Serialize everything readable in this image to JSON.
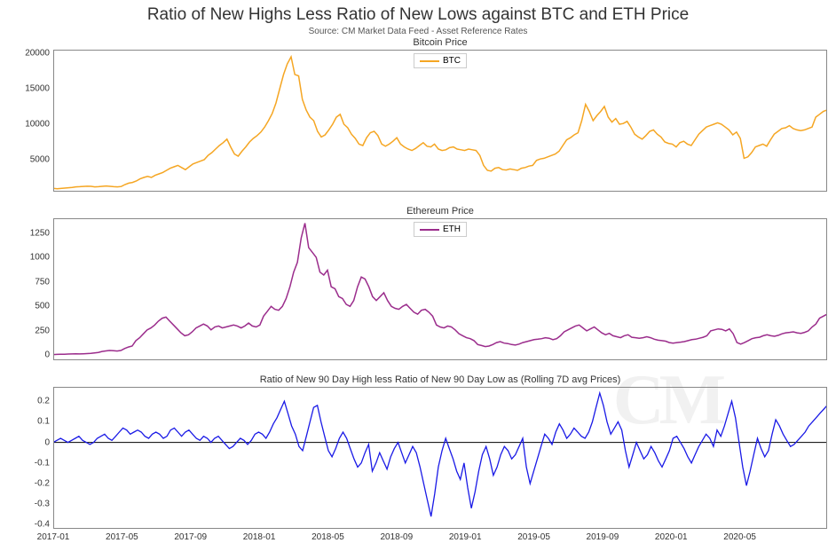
{
  "title": "Ratio of New Highs Less Ratio of New Lows against BTC and ETH Price",
  "subtitle": "Source: CM Market Data Feed - Asset Reference Rates",
  "background_color": "#ffffff",
  "watermark_text": "CM",
  "x_axis": {
    "ticks": [
      "2017-01",
      "2017-05",
      "2017-09",
      "2018-01",
      "2018-05",
      "2018-09",
      "2019-01",
      "2019-05",
      "2019-09",
      "2020-01",
      "2020-05"
    ],
    "fontsize": 10
  },
  "panels": [
    {
      "key": "btc",
      "title": "Bitcoin Price",
      "legend_label": "BTC",
      "color": "#f5a623",
      "line_width": 1.5,
      "y_ticks": [
        5000,
        10000,
        15000,
        20000
      ],
      "ylim": [
        500,
        20500
      ],
      "data": [
        980,
        900,
        950,
        1000,
        1050,
        1100,
        1180,
        1200,
        1240,
        1260,
        1250,
        1180,
        1200,
        1250,
        1300,
        1250,
        1200,
        1180,
        1220,
        1500,
        1700,
        1800,
        2000,
        2300,
        2500,
        2650,
        2500,
        2800,
        3000,
        3200,
        3500,
        3800,
        4000,
        4200,
        3900,
        3600,
        4000,
        4400,
        4600,
        4800,
        5000,
        5600,
        6000,
        6500,
        7000,
        7400,
        7900,
        6800,
        5800,
        5500,
        6200,
        6800,
        7500,
        8000,
        8400,
        8900,
        9600,
        10500,
        11500,
        13000,
        15000,
        17000,
        18500,
        19500,
        17000,
        16800,
        13500,
        12000,
        11000,
        10500,
        9000,
        8200,
        8500,
        9200,
        10000,
        11000,
        11400,
        10000,
        9500,
        8600,
        8000,
        7200,
        7000,
        8100,
        8800,
        9000,
        8400,
        7200,
        6900,
        7200,
        7600,
        8100,
        7200,
        6800,
        6500,
        6300,
        6600,
        7000,
        7400,
        6900,
        6800,
        7200,
        6500,
        6300,
        6400,
        6700,
        6800,
        6500,
        6400,
        6300,
        6500,
        6400,
        6300,
        5600,
        4200,
        3500,
        3400,
        3800,
        3900,
        3600,
        3550,
        3700,
        3600,
        3500,
        3800,
        3900,
        4100,
        4200,
        4900,
        5100,
        5200,
        5400,
        5600,
        5800,
        6200,
        7000,
        7800,
        8100,
        8500,
        8800,
        10500,
        12800,
        11800,
        10500,
        11200,
        11800,
        12500,
        11000,
        10300,
        10800,
        10000,
        10100,
        10400,
        9600,
        8600,
        8200,
        7900,
        8400,
        9000,
        9200,
        8600,
        8200,
        7500,
        7300,
        7200,
        6800,
        7400,
        7600,
        7200,
        7000,
        7800,
        8600,
        9100,
        9600,
        9800,
        10000,
        10200,
        10000,
        9600,
        9200,
        8500,
        8900,
        8000,
        5200,
        5400,
        6000,
        6800,
        7000,
        7200,
        6900,
        7800,
        8600,
        9000,
        9400,
        9500,
        9800,
        9400,
        9200,
        9100,
        9200,
        9400,
        9600,
        11000,
        11400,
        11800,
        12000
      ]
    },
    {
      "key": "eth",
      "title": "Ethereum Price",
      "legend_label": "ETH",
      "color": "#9b2d8c",
      "line_width": 1.5,
      "y_ticks": [
        0,
        250,
        500,
        750,
        1000,
        1250
      ],
      "ylim": [
        -50,
        1400
      ],
      "data": [
        8,
        10,
        11,
        12,
        13,
        14,
        15,
        14,
        16,
        18,
        20,
        25,
        30,
        40,
        45,
        50,
        48,
        44,
        50,
        70,
        85,
        95,
        150,
        180,
        220,
        260,
        280,
        310,
        350,
        380,
        390,
        350,
        310,
        270,
        230,
        200,
        210,
        240,
        280,
        300,
        320,
        300,
        260,
        290,
        300,
        280,
        290,
        300,
        310,
        300,
        280,
        300,
        330,
        300,
        290,
        310,
        400,
        450,
        500,
        470,
        460,
        500,
        580,
        700,
        850,
        950,
        1200,
        1350,
        1100,
        1050,
        1000,
        850,
        820,
        870,
        700,
        680,
        600,
        580,
        520,
        500,
        560,
        700,
        800,
        780,
        700,
        600,
        560,
        600,
        640,
        560,
        500,
        480,
        470,
        500,
        520,
        480,
        440,
        420,
        460,
        470,
        440,
        400,
        310,
        290,
        280,
        300,
        290,
        260,
        220,
        200,
        180,
        170,
        150,
        110,
        100,
        90,
        95,
        110,
        130,
        140,
        125,
        120,
        110,
        105,
        115,
        130,
        140,
        150,
        160,
        165,
        170,
        180,
        175,
        160,
        170,
        200,
        240,
        260,
        280,
        300,
        310,
        280,
        250,
        270,
        290,
        260,
        230,
        210,
        225,
        200,
        190,
        180,
        200,
        210,
        185,
        180,
        175,
        180,
        190,
        180,
        165,
        155,
        150,
        145,
        130,
        125,
        130,
        135,
        140,
        150,
        160,
        165,
        175,
        185,
        200,
        250,
        260,
        270,
        265,
        250,
        270,
        220,
        130,
        115,
        130,
        150,
        170,
        180,
        185,
        200,
        210,
        200,
        195,
        205,
        220,
        230,
        235,
        240,
        230,
        225,
        235,
        250,
        290,
        320,
        380,
        400,
        420
      ]
    },
    {
      "key": "ratio",
      "title": "Ratio of New 90 Day High less Ratio of New 90  Day Low as (Rolling 7D avg Prices)",
      "legend_label": null,
      "color": "#1a1ae6",
      "line_width": 1.3,
      "y_ticks": [
        -0.4,
        -0.3,
        -0.2,
        -0.1,
        0.0,
        0.1,
        0.2
      ],
      "ylim": [
        -0.42,
        0.27
      ],
      "zero_line": true,
      "data": [
        0.0,
        0.01,
        0.02,
        0.01,
        0.0,
        0.01,
        0.02,
        0.03,
        0.01,
        0.0,
        -0.01,
        0.0,
        0.02,
        0.03,
        0.04,
        0.02,
        0.01,
        0.03,
        0.05,
        0.07,
        0.06,
        0.04,
        0.05,
        0.06,
        0.05,
        0.03,
        0.02,
        0.04,
        0.05,
        0.04,
        0.02,
        0.03,
        0.06,
        0.07,
        0.05,
        0.03,
        0.05,
        0.06,
        0.04,
        0.02,
        0.01,
        0.03,
        0.02,
        0.0,
        0.02,
        0.03,
        0.01,
        -0.01,
        -0.03,
        -0.02,
        0.0,
        0.02,
        0.01,
        -0.01,
        0.01,
        0.04,
        0.05,
        0.04,
        0.02,
        0.05,
        0.09,
        0.12,
        0.16,
        0.2,
        0.14,
        0.08,
        0.04,
        -0.02,
        -0.04,
        0.03,
        0.1,
        0.17,
        0.18,
        0.1,
        0.03,
        -0.04,
        -0.07,
        -0.03,
        0.02,
        0.05,
        0.02,
        -0.03,
        -0.08,
        -0.12,
        -0.1,
        -0.05,
        -0.01,
        -0.14,
        -0.1,
        -0.05,
        -0.09,
        -0.13,
        -0.07,
        -0.03,
        0.0,
        -0.05,
        -0.1,
        -0.06,
        -0.02,
        -0.05,
        -0.12,
        -0.2,
        -0.28,
        -0.36,
        -0.25,
        -0.12,
        -0.04,
        0.02,
        -0.03,
        -0.08,
        -0.14,
        -0.18,
        -0.1,
        -0.22,
        -0.32,
        -0.24,
        -0.14,
        -0.06,
        -0.02,
        -0.08,
        -0.16,
        -0.12,
        -0.06,
        -0.02,
        -0.04,
        -0.08,
        -0.06,
        -0.02,
        0.02,
        -0.12,
        -0.2,
        -0.14,
        -0.08,
        -0.02,
        0.04,
        0.02,
        -0.01,
        0.05,
        0.09,
        0.06,
        0.02,
        0.04,
        0.07,
        0.05,
        0.03,
        0.02,
        0.05,
        0.1,
        0.17,
        0.24,
        0.18,
        0.1,
        0.04,
        0.07,
        0.1,
        0.06,
        -0.04,
        -0.12,
        -0.06,
        0.0,
        -0.04,
        -0.08,
        -0.06,
        -0.02,
        -0.05,
        -0.09,
        -0.12,
        -0.08,
        -0.04,
        0.02,
        0.03,
        0.0,
        -0.03,
        -0.07,
        -0.1,
        -0.06,
        -0.02,
        0.01,
        0.04,
        0.02,
        -0.02,
        0.06,
        0.03,
        0.08,
        0.14,
        0.2,
        0.12,
        0.0,
        -0.12,
        -0.21,
        -0.14,
        -0.06,
        0.02,
        -0.03,
        -0.07,
        -0.04,
        0.04,
        0.11,
        0.08,
        0.04,
        0.01,
        -0.02,
        -0.01,
        0.01,
        0.03,
        0.05,
        0.08,
        0.1,
        0.12,
        0.14,
        0.16,
        0.18
      ]
    }
  ]
}
